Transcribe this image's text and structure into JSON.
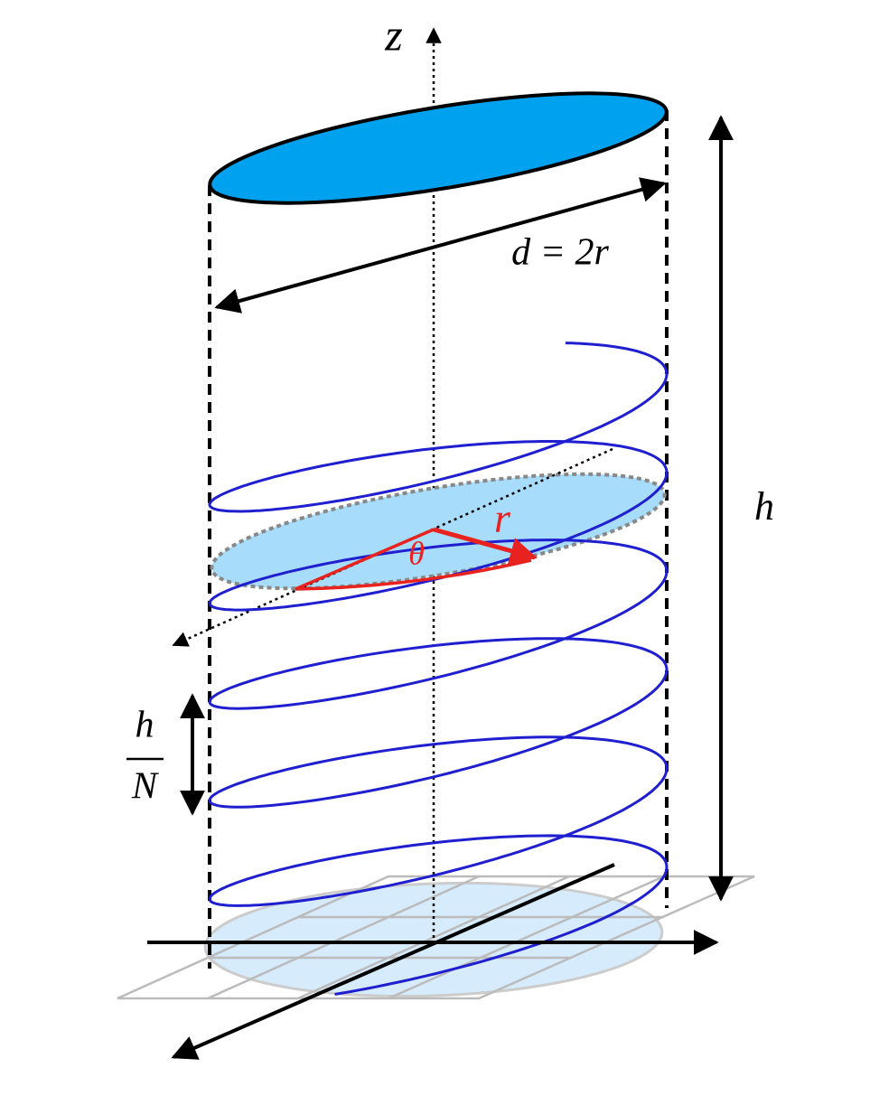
{
  "labels": {
    "z_axis": "z",
    "diameter": "d = 2r",
    "height": "h",
    "radius": "r",
    "angle": "θ",
    "pitch_numerator": "h",
    "pitch_denominator": "N"
  }
}
